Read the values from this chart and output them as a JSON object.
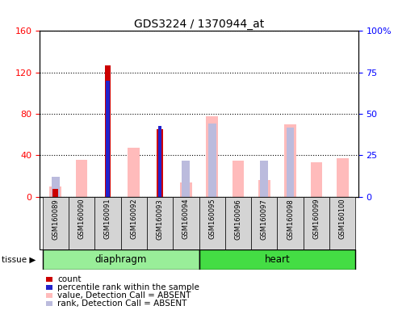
{
  "title": "GDS3224 / 1370944_at",
  "samples": [
    "GSM160089",
    "GSM160090",
    "GSM160091",
    "GSM160092",
    "GSM160093",
    "GSM160094",
    "GSM160095",
    "GSM160096",
    "GSM160097",
    "GSM160098",
    "GSM160099",
    "GSM160100"
  ],
  "count": [
    8,
    0,
    127,
    0,
    65,
    0,
    0,
    0,
    0,
    0,
    0,
    0
  ],
  "percentile_rank": [
    0,
    0,
    70,
    0,
    43,
    0,
    0,
    0,
    0,
    0,
    0,
    0
  ],
  "value_absent": [
    10,
    36,
    0,
    47,
    0,
    14,
    78,
    35,
    16,
    70,
    33,
    37
  ],
  "rank_absent": [
    12,
    0,
    0,
    0,
    0,
    22,
    44,
    0,
    22,
    42,
    0,
    0
  ],
  "ylim_left": [
    0,
    160
  ],
  "ylim_right": [
    0,
    100
  ],
  "yticks_left": [
    0,
    40,
    80,
    120,
    160
  ],
  "yticks_right": [
    0,
    25,
    50,
    75,
    100
  ],
  "ytick_labels_left": [
    "0",
    "40",
    "80",
    "120",
    "160"
  ],
  "ytick_labels_right": [
    "0",
    "25",
    "50",
    "75",
    "100%"
  ],
  "color_count": "#cc0000",
  "color_rank": "#2222cc",
  "color_value_absent": "#ffbbbb",
  "color_rank_absent": "#bbbbdd",
  "color_tissue_diaphragm": "#99ee99",
  "color_tissue_heart": "#44dd44",
  "legend_items": [
    {
      "color": "#cc0000",
      "label": "count"
    },
    {
      "color": "#2222cc",
      "label": "percentile rank within the sample"
    },
    {
      "color": "#ffbbbb",
      "label": "value, Detection Call = ABSENT"
    },
    {
      "color": "#bbbbdd",
      "label": "rank, Detection Call = ABSENT"
    }
  ]
}
